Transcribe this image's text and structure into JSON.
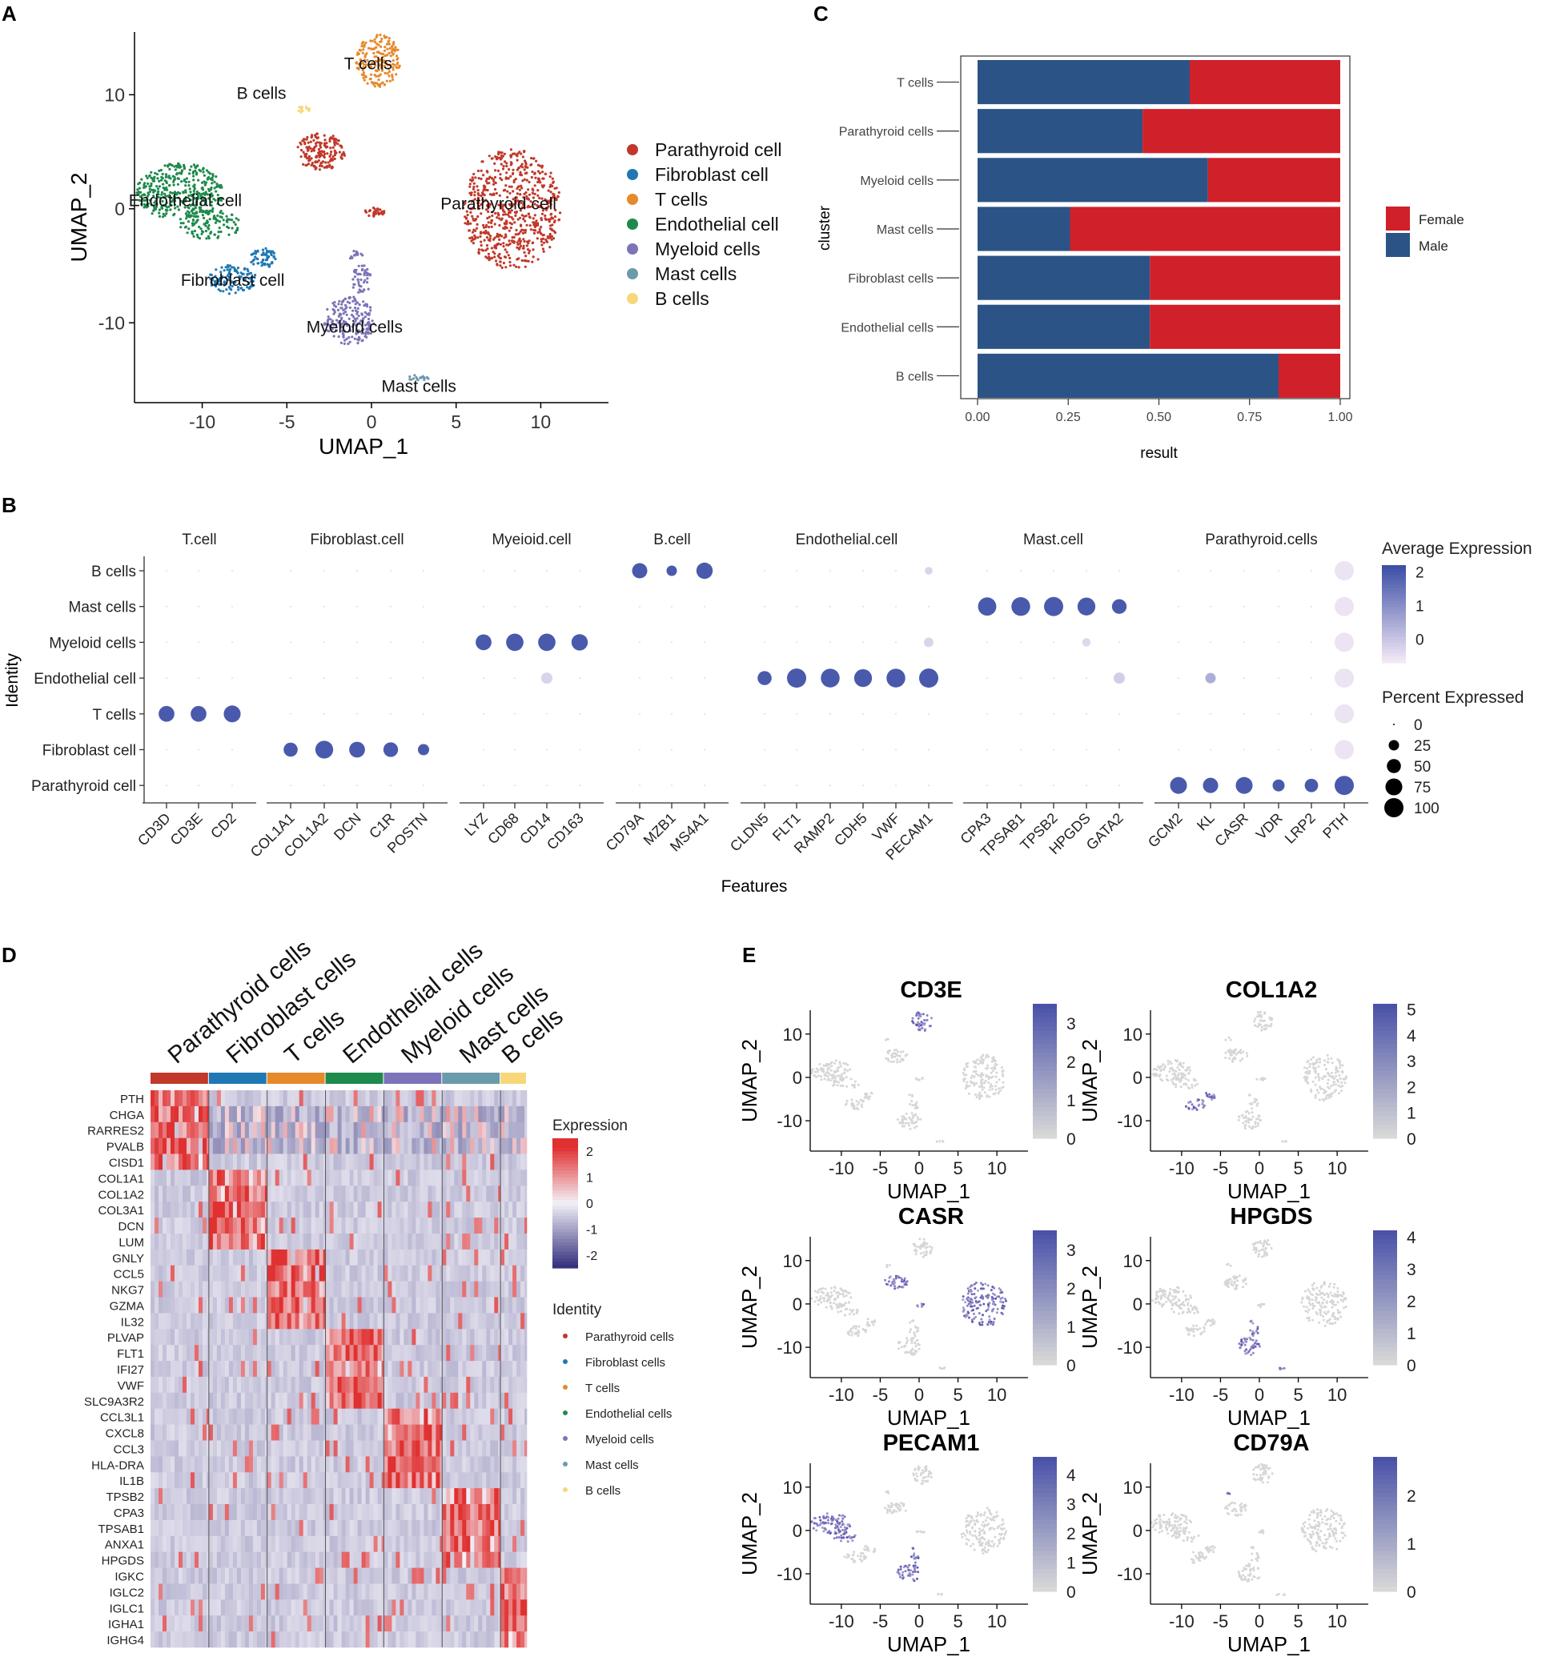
{
  "panel_labels": {
    "A": "A",
    "B": "B",
    "C": "C",
    "D": "D",
    "E": "E"
  },
  "colors": {
    "Parathyroid": "#c0392b",
    "Fibroblast": "#1f78b4",
    "T": "#e6892b",
    "Endothelial": "#1e8a4c",
    "Myeloid": "#7b74b8",
    "Mast": "#6b9aab",
    "B": "#f7d77a",
    "female": "#d0202a",
    "male": "#2b5386",
    "dot": "#3d4fa6",
    "heat_hi": "#e03030",
    "heat_lo": "#2e2a7a"
  },
  "chart_data": [
    {
      "panel": "A",
      "type": "scatter",
      "xlabel": "UMAP_1",
      "ylabel": "UMAP_2",
      "xlim": [
        -14,
        14
      ],
      "ylim": [
        -17,
        15.5
      ],
      "xticks": [
        "-10",
        "-5",
        "0",
        "5",
        "10"
      ],
      "yticks": [
        "10",
        "0",
        "-10"
      ],
      "legend": [
        "Parathyroid cell",
        "Fibroblast cell",
        "T cells",
        "Endothelial cell",
        "Myeloid cells",
        "Mast cells",
        "B cells"
      ],
      "clusters": [
        {
          "name": "Parathyroid cell",
          "label": "Parathyroid cell",
          "color_key": "Parathyroid",
          "label_x": 7.5,
          "label_y": 0.5,
          "blobs": [
            {
              "cx": 8.3,
              "cy": 0,
              "rx": 2.9,
              "ry": 5.3,
              "n": 650
            },
            {
              "cx": -3,
              "cy": 5,
              "rx": 1.5,
              "ry": 1.6,
              "n": 170
            },
            {
              "cx": 0.2,
              "cy": -0.3,
              "rx": 0.6,
              "ry": 0.4,
              "n": 30
            }
          ]
        },
        {
          "name": "Fibroblast cell",
          "label": "Fibroblast cell",
          "color_key": "Fibroblast",
          "label_x": -8.2,
          "label_y": -6.2,
          "blobs": [
            {
              "cx": -8.2,
              "cy": -6.2,
              "rx": 1.4,
              "ry": 1.3,
              "n": 110
            },
            {
              "cx": -6.4,
              "cy": -4.3,
              "rx": 0.8,
              "ry": 0.9,
              "n": 60
            }
          ]
        },
        {
          "name": "T cells",
          "label": "T cells",
          "color_key": "T",
          "label_x": -0.2,
          "label_y": 12.8,
          "blobs": [
            {
              "cx": 0.4,
              "cy": 13,
              "rx": 1.3,
              "ry": 2.3,
              "n": 180
            }
          ]
        },
        {
          "name": "Endothelial cell",
          "label": "Endothelial cell",
          "color_key": "Endothelial",
          "label_x": -11,
          "label_y": 0.8,
          "blobs": [
            {
              "cx": -11.3,
              "cy": 1.5,
              "rx": 2.6,
              "ry": 2.5,
              "n": 380
            },
            {
              "cx": -9.5,
              "cy": -1.4,
              "rx": 1.8,
              "ry": 1.3,
              "n": 110
            }
          ]
        },
        {
          "name": "Myeloid cells",
          "label": "Myeloid cells",
          "color_key": "Myeloid",
          "label_x": -1,
          "label_y": -10.3,
          "blobs": [
            {
              "cx": -1.3,
              "cy": -9.8,
              "rx": 1.5,
              "ry": 2.1,
              "n": 190
            },
            {
              "cx": -0.6,
              "cy": -6.2,
              "rx": 0.6,
              "ry": 1.3,
              "n": 50
            },
            {
              "cx": -1,
              "cy": -4.1,
              "rx": 0.5,
              "ry": 0.4,
              "n": 15
            }
          ]
        },
        {
          "name": "Mast cells",
          "label": "Mast cells",
          "color_key": "Mast",
          "label_x": 2.8,
          "label_y": -15.5,
          "blobs": [
            {
              "cx": 2.8,
              "cy": -14.8,
              "rx": 0.7,
              "ry": 0.25,
              "n": 20
            }
          ]
        },
        {
          "name": "B cells",
          "label": "B cells",
          "color_key": "B",
          "label_x": -6.5,
          "label_y": 10.2,
          "blobs": [
            {
              "cx": -4,
              "cy": 8.8,
              "rx": 0.4,
              "ry": 0.4,
              "n": 12
            }
          ]
        }
      ]
    },
    {
      "panel": "C",
      "type": "bar",
      "stacked": true,
      "ylabel": "cluster",
      "xlabel": "result",
      "xlim": [
        0,
        1
      ],
      "xticks": [
        "0.00",
        "0.25",
        "0.50",
        "0.75",
        "1.00"
      ],
      "categories": [
        "T cells",
        "Parathyroid cells",
        "Myeloid cells",
        "Mast cells",
        "Fibroblast cells",
        "Endothelial cells",
        "B cells"
      ],
      "series": [
        {
          "name": "Male",
          "color_key": "male",
          "values": [
            0.585,
            0.455,
            0.635,
            0.255,
            0.475,
            0.475,
            0.83
          ]
        },
        {
          "name": "Female",
          "color_key": "female",
          "values": [
            0.415,
            0.545,
            0.365,
            0.745,
            0.525,
            0.525,
            0.17
          ]
        }
      ],
      "legend": [
        "Female",
        "Male"
      ]
    },
    {
      "panel": "B",
      "type": "scatter",
      "subtype": "dotplot",
      "xlabel": "Features",
      "ylabel": "Identity",
      "rows": [
        "B cells",
        "Mast cells",
        "Myeloid cells",
        "Endothelial cell",
        "T cells",
        "Fibroblast cell",
        "Parathyroid cell"
      ],
      "groups": [
        {
          "name": "T.cell",
          "genes": [
            "CD3D",
            "CD3E",
            "CD2"
          ]
        },
        {
          "name": "Fibroblast.cell",
          "genes": [
            "COL1A1",
            "COL1A2",
            "DCN",
            "C1R",
            "POSTN"
          ]
        },
        {
          "name": "Myeioid.cell",
          "genes": [
            "LYZ",
            "CD68",
            "CD14",
            "CD163"
          ]
        },
        {
          "name": "B.cell",
          "genes": [
            "CD79A",
            "MZB1",
            "MS4A1"
          ]
        },
        {
          "name": "Endothelial.cell",
          "genes": [
            "CLDN5",
            "FLT1",
            "RAMP2",
            "CDH5",
            "VWF",
            "PECAM1"
          ]
        },
        {
          "name": "Mast.cell",
          "genes": [
            "CPA3",
            "TPSAB1",
            "TPSB2",
            "HPGDS",
            "GATA2"
          ]
        },
        {
          "name": "Parathyroid.cells",
          "genes": [
            "GCM2",
            "KL",
            "CASR",
            "VDR",
            "LRP2",
            "PTH"
          ]
        }
      ],
      "expressed": [
        {
          "row": "B cells",
          "gene": "CD79A",
          "pct": 60,
          "avg": 2
        },
        {
          "row": "B cells",
          "gene": "MZB1",
          "pct": 25,
          "avg": 2
        },
        {
          "row": "B cells",
          "gene": "MS4A1",
          "pct": 70,
          "avg": 2
        },
        {
          "row": "B cells",
          "gene": "PECAM1",
          "pct": 12,
          "avg": -0.3
        },
        {
          "row": "B cells",
          "gene": "PTH",
          "pct": 100,
          "avg": -0.6
        },
        {
          "row": "Mast cells",
          "gene": "CPA3",
          "pct": 90,
          "avg": 2
        },
        {
          "row": "Mast cells",
          "gene": "TPSAB1",
          "pct": 95,
          "avg": 2
        },
        {
          "row": "Mast cells",
          "gene": "TPSB2",
          "pct": 100,
          "avg": 2
        },
        {
          "row": "Mast cells",
          "gene": "HPGDS",
          "pct": 85,
          "avg": 2
        },
        {
          "row": "Mast cells",
          "gene": "GATA2",
          "pct": 55,
          "avg": 2
        },
        {
          "row": "Mast cells",
          "gene": "PTH",
          "pct": 100,
          "avg": -0.6
        },
        {
          "row": "Myeloid cells",
          "gene": "LYZ",
          "pct": 65,
          "avg": 2
        },
        {
          "row": "Myeloid cells",
          "gene": "CD68",
          "pct": 80,
          "avg": 2
        },
        {
          "row": "Myeloid cells",
          "gene": "CD14",
          "pct": 80,
          "avg": 2
        },
        {
          "row": "Myeloid cells",
          "gene": "CD163",
          "pct": 70,
          "avg": 2
        },
        {
          "row": "Myeloid cells",
          "gene": "PECAM1",
          "pct": 20,
          "avg": -0.3
        },
        {
          "row": "Myeloid cells",
          "gene": "HPGDS",
          "pct": 15,
          "avg": -0.4
        },
        {
          "row": "Myeloid cells",
          "gene": "PTH",
          "pct": 100,
          "avg": -0.6
        },
        {
          "row": "Endothelial cell",
          "gene": "CD14",
          "pct": 30,
          "avg": -0.3
        },
        {
          "row": "Endothelial cell",
          "gene": "CLDN5",
          "pct": 50,
          "avg": 2
        },
        {
          "row": "Endothelial cell",
          "gene": "FLT1",
          "pct": 100,
          "avg": 2
        },
        {
          "row": "Endothelial cell",
          "gene": "RAMP2",
          "pct": 95,
          "avg": 2
        },
        {
          "row": "Endothelial cell",
          "gene": "CDH5",
          "pct": 85,
          "avg": 2
        },
        {
          "row": "Endothelial cell",
          "gene": "VWF",
          "pct": 95,
          "avg": 2
        },
        {
          "row": "Endothelial cell",
          "gene": "PECAM1",
          "pct": 100,
          "avg": 2
        },
        {
          "row": "Endothelial cell",
          "gene": "GATA2",
          "pct": 30,
          "avg": -0.2
        },
        {
          "row": "Endothelial cell",
          "gene": "KL",
          "pct": 25,
          "avg": 0.4
        },
        {
          "row": "Endothelial cell",
          "gene": "PTH",
          "pct": 100,
          "avg": -0.6
        },
        {
          "row": "T cells",
          "gene": "CD3D",
          "pct": 65,
          "avg": 2
        },
        {
          "row": "T cells",
          "gene": "CD3E",
          "pct": 65,
          "avg": 2
        },
        {
          "row": "T cells",
          "gene": "CD2",
          "pct": 75,
          "avg": 2
        },
        {
          "row": "T cells",
          "gene": "PTH",
          "pct": 100,
          "avg": -0.6
        },
        {
          "row": "Fibroblast cell",
          "gene": "COL1A1",
          "pct": 50,
          "avg": 2
        },
        {
          "row": "Fibroblast cell",
          "gene": "COL1A2",
          "pct": 85,
          "avg": 2
        },
        {
          "row": "Fibroblast cell",
          "gene": "DCN",
          "pct": 65,
          "avg": 2
        },
        {
          "row": "Fibroblast cell",
          "gene": "C1R",
          "pct": 55,
          "avg": 2
        },
        {
          "row": "Fibroblast cell",
          "gene": "POSTN",
          "pct": 30,
          "avg": 2
        },
        {
          "row": "Fibroblast cell",
          "gene": "PTH",
          "pct": 100,
          "avg": -0.6
        },
        {
          "row": "Parathyroid cell",
          "gene": "GCM2",
          "pct": 75,
          "avg": 2
        },
        {
          "row": "Parathyroid cell",
          "gene": "KL",
          "pct": 60,
          "avg": 2
        },
        {
          "row": "Parathyroid cell",
          "gene": "CASR",
          "pct": 75,
          "avg": 2
        },
        {
          "row": "Parathyroid cell",
          "gene": "VDR",
          "pct": 35,
          "avg": 2
        },
        {
          "row": "Parathyroid cell",
          "gene": "LRP2",
          "pct": 45,
          "avg": 2
        },
        {
          "row": "Parathyroid cell",
          "gene": "PTH",
          "pct": 100,
          "avg": 2
        }
      ],
      "avg_legend": {
        "title": "Average Expression",
        "ticks": [
          "2",
          "1",
          "0"
        ],
        "range": [
          -0.7,
          2.2
        ]
      },
      "pct_legend": {
        "title": "Percent Expressed",
        "values": [
          0,
          25,
          50,
          75,
          100
        ]
      }
    },
    {
      "panel": "D",
      "type": "heatmap",
      "groups": [
        "Parathyroid cells",
        "Fibroblast cells",
        "T cells",
        "Endothelial cells",
        "Myeloid cells",
        "Mast cells",
        "B cells"
      ],
      "group_color_keys": [
        "Parathyroid",
        "Fibroblast",
        "T",
        "Endothelial",
        "Myeloid",
        "Mast",
        "B"
      ],
      "group_widths": [
        0.155,
        0.155,
        0.155,
        0.155,
        0.155,
        0.155,
        0.07
      ],
      "genes": [
        "PTH",
        "CHGA",
        "RARRES2",
        "PVALB",
        "CISD1",
        "COL1A1",
        "COL1A2",
        "COL3A1",
        "DCN",
        "LUM",
        "GNLY",
        "CCL5",
        "NKG7",
        "GZMA",
        "IL32",
        "PLVAP",
        "FLT1",
        "IFI27",
        "VWF",
        "SLC9A3R2",
        "CCL3L1",
        "CXCL8",
        "CCL3",
        "HLA-DRA",
        "IL1B",
        "TPSB2",
        "CPA3",
        "TPSAB1",
        "ANXA1",
        "HPGDS",
        "IGKC",
        "IGLC2",
        "IGLC1",
        "IGHA1",
        "IGHG4"
      ],
      "gene_groups": [
        0,
        0,
        0,
        0,
        0,
        1,
        1,
        1,
        1,
        1,
        2,
        2,
        2,
        2,
        2,
        3,
        3,
        3,
        3,
        3,
        4,
        4,
        4,
        4,
        4,
        5,
        5,
        5,
        5,
        5,
        6,
        6,
        6,
        6,
        6
      ],
      "color_legend": {
        "title": "Expression",
        "ticks": [
          "2",
          "1",
          "0",
          "-1",
          "-2"
        ],
        "range": [
          -2.5,
          2.5
        ]
      },
      "identity_legend": {
        "title": "Identity",
        "items": [
          "Parathyroid cells",
          "Fibroblast cells",
          "T cells",
          "Endothelial cells",
          "Myeloid cells",
          "Mast cells",
          "B cells"
        ]
      }
    },
    {
      "panel": "E",
      "type": "scatter",
      "subtype": "feature_plots",
      "xlabel": "UMAP_1",
      "ylabel": "UMAP_2",
      "xticks": [
        "-10",
        "-5",
        "0",
        "5",
        "10"
      ],
      "yticks": [
        "10",
        "0",
        "-10"
      ],
      "plots": [
        {
          "gene": "CD3E",
          "max": 3.5,
          "ticks": [
            "3",
            "2",
            "1",
            "0"
          ],
          "highlight": [
            "T cells"
          ]
        },
        {
          "gene": "COL1A2",
          "max": 5.2,
          "ticks": [
            "5",
            "4",
            "3",
            "2",
            "1",
            "0"
          ],
          "highlight": [
            "Fibroblast cell"
          ]
        },
        {
          "gene": "CASR",
          "max": 3.5,
          "ticks": [
            "3",
            "2",
            "1",
            "0"
          ],
          "highlight": [
            "Parathyroid cell"
          ]
        },
        {
          "gene": "HPGDS",
          "max": 4.2,
          "ticks": [
            "4",
            "3",
            "2",
            "1",
            "0"
          ],
          "highlight": [
            "Myeloid cells",
            "Mast cells"
          ]
        },
        {
          "gene": "PECAM1",
          "max": 4.6,
          "ticks": [
            "4",
            "3",
            "2",
            "1",
            "0"
          ],
          "highlight": [
            "Endothelial cell",
            "Myeloid cells"
          ]
        },
        {
          "gene": "CD79A",
          "max": 2.8,
          "ticks": [
            "2",
            "1",
            "0"
          ],
          "highlight": [
            "B cells"
          ]
        }
      ]
    }
  ]
}
